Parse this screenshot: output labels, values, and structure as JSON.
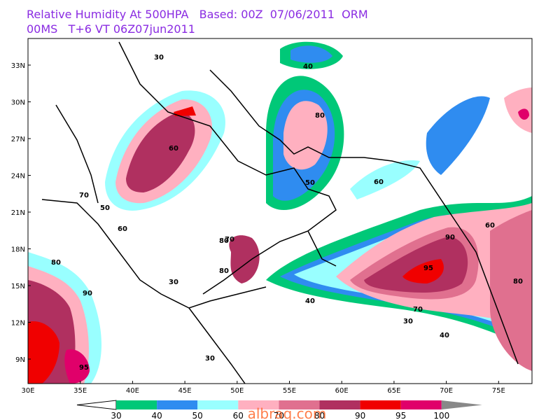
{
  "header": {
    "line1": "Relative Humidity At 500HPA   Based: 00Z  07/06/2011  ORM",
    "line2": "00MS   T+6 VT 06Z07jun2011"
  },
  "map": {
    "lat_labels": [
      "33N",
      "30N",
      "27N",
      "24N",
      "21N",
      "18N",
      "15N",
      "12N",
      "9N"
    ],
    "lon_labels": [
      "30E",
      "35E",
      "40E",
      "45E",
      "50E",
      "55E",
      "60E",
      "65E",
      "70E",
      "75E"
    ],
    "contour_labels": [
      "30",
      "40",
      "50",
      "60",
      "70",
      "80",
      "90",
      "95",
      "30",
      "40",
      "60",
      "80",
      "90",
      "95",
      "60",
      "80",
      "30",
      "40",
      "80",
      "70",
      "50",
      "60",
      "30",
      "70",
      "80"
    ]
  },
  "colorbar": {
    "labels": [
      "30",
      "40",
      "50",
      "60",
      "70",
      "80",
      "90",
      "95",
      "100"
    ],
    "colors": [
      "#00c878",
      "#2f8cf0",
      "#99ffff",
      "#ffb0c0",
      "#e0708f",
      "#b03060",
      "#f00000",
      "#e0006a"
    ],
    "below_color": "#ffffff",
    "above_color": "#888888"
  },
  "watermark": "albraq.com"
}
